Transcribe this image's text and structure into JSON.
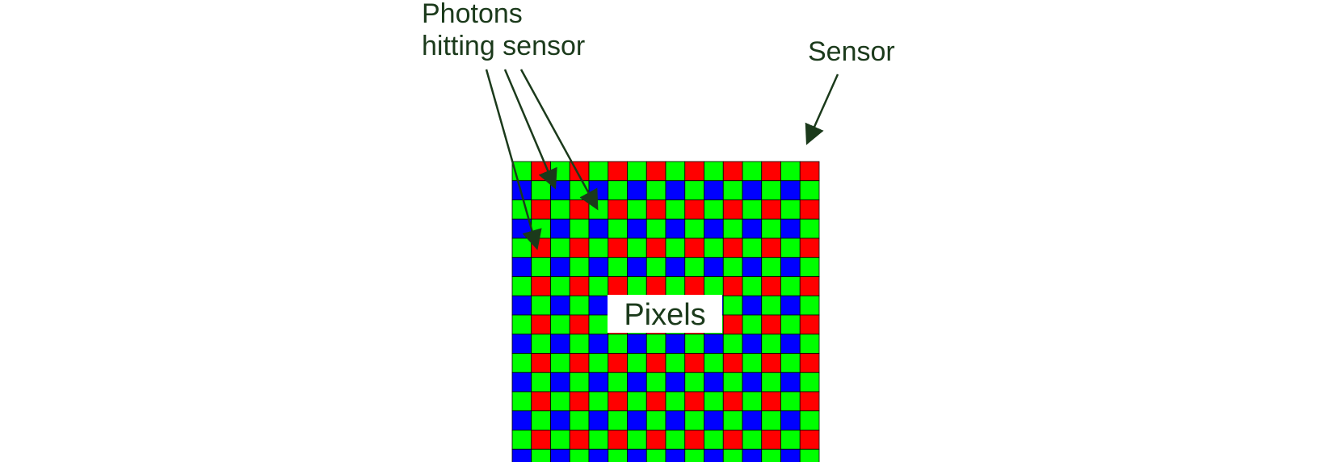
{
  "labels": {
    "photons_line1": "Photons",
    "photons_line2": "hitting sensor",
    "sensor": "Sensor",
    "pixels": "Pixels"
  },
  "sensor_grid": {
    "rows": 16,
    "cols": 16,
    "pattern": "bayer-rggb-offset",
    "colors": {
      "red": "#ff0000",
      "green": "#00ff00",
      "blue": "#0000ff",
      "gridline": "#000000",
      "label_box": "#ffffff"
    }
  },
  "colors": {
    "text": "#1b3a1b",
    "arrow": "#1b3a1b",
    "background": "#ffffff"
  }
}
